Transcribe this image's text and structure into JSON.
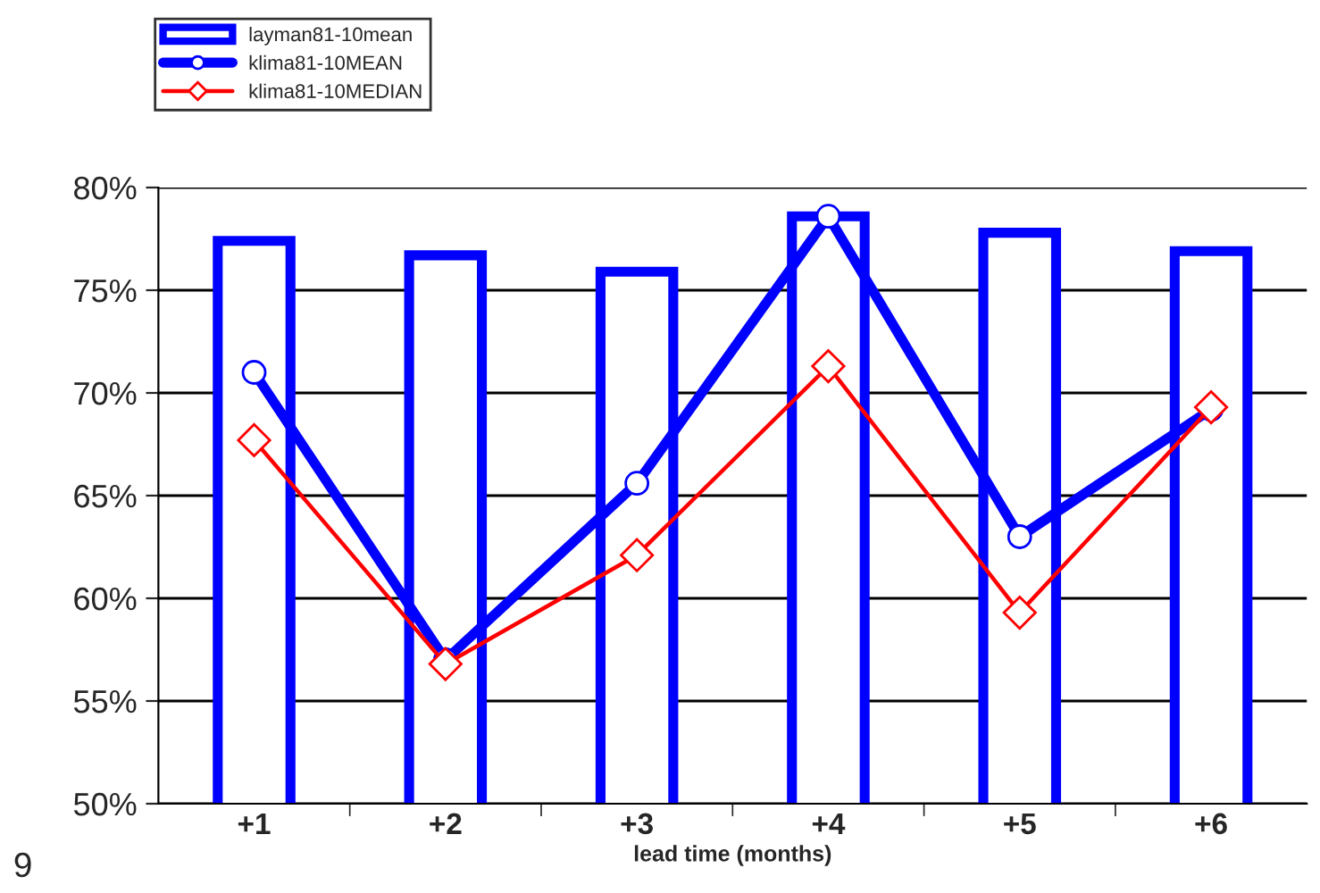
{
  "chart_data": {
    "type": "bar",
    "xlabel": "lead time (months)",
    "categories": [
      "+1",
      "+2",
      "+3",
      "+4",
      "+5",
      "+6"
    ],
    "series": [
      {
        "name": "layman81-10mean",
        "color": "#0000ff",
        "values": [
          77.4,
          76.7,
          75.9,
          78.6,
          77.8,
          76.9
        ]
      },
      {
        "name": "klima81-10MEAN",
        "type": "line",
        "color": "#0000ff",
        "marker": "circle",
        "values": [
          71.0,
          57.0,
          65.6,
          78.6,
          63.0,
          69.2
        ]
      },
      {
        "name": "klima81-10MEDIAN",
        "type": "line",
        "color": "#ff0000",
        "marker": "diamond",
        "values": [
          67.7,
          56.8,
          62.1,
          71.3,
          59.3,
          69.3
        ]
      }
    ],
    "ylim": [
      50,
      80
    ],
    "yticks": [
      {
        "value": 50,
        "label": "50%"
      },
      {
        "value": 55,
        "label": "55%"
      },
      {
        "value": 60,
        "label": "60%"
      },
      {
        "value": 65,
        "label": "65%"
      },
      {
        "value": 70,
        "label": "70%"
      },
      {
        "value": 75,
        "label": "75%"
      },
      {
        "value": 80,
        "label": "80%"
      }
    ],
    "grid": "y",
    "legend": "top left",
    "annotations": [
      "9"
    ]
  }
}
